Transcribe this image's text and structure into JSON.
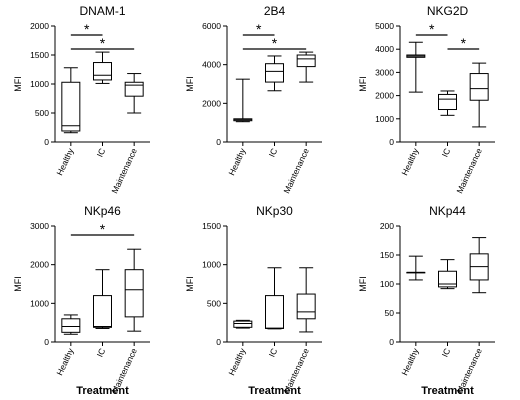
{
  "chart_data": [
    {
      "type": "box",
      "title": "DNAM-1",
      "ylabel": "MFI",
      "xlabel": "",
      "ylim": [
        0,
        2000
      ],
      "yticks": [
        "0",
        "500",
        "1000",
        "1500",
        "2000"
      ],
      "categories": [
        "Healthy",
        "IC",
        "Maintenance"
      ],
      "boxes": [
        {
          "min": 160,
          "q1": 190,
          "median": 280,
          "q3": 1030,
          "max": 1280
        },
        {
          "min": 1010,
          "q1": 1070,
          "median": 1150,
          "q3": 1370,
          "max": 1550
        },
        {
          "min": 500,
          "q1": 790,
          "median": 980,
          "q3": 1030,
          "max": 1180
        }
      ],
      "significance": [
        {
          "from": 0,
          "to": 1,
          "label": "*"
        },
        {
          "from": 0,
          "to": 2,
          "label": "*"
        }
      ]
    },
    {
      "type": "box",
      "title": "2B4",
      "ylabel": "MFI",
      "xlabel": "",
      "ylim": [
        0,
        6000
      ],
      "yticks": [
        "0",
        "2000",
        "4000",
        "6000"
      ],
      "categories": [
        "Healthy",
        "IC",
        "Maintenance"
      ],
      "boxes": [
        {
          "min": 1050,
          "q1": 1100,
          "median": 1150,
          "q3": 1200,
          "max": 3250
        },
        {
          "min": 2650,
          "q1": 3100,
          "median": 3650,
          "q3": 4050,
          "max": 4450
        },
        {
          "min": 3100,
          "q1": 3900,
          "median": 4300,
          "q3": 4500,
          "max": 4650
        }
      ],
      "significance": [
        {
          "from": 0,
          "to": 1,
          "label": "*"
        },
        {
          "from": 0,
          "to": 2,
          "label": "*"
        }
      ]
    },
    {
      "type": "box",
      "title": "NKG2D",
      "ylabel": "MFI",
      "xlabel": "",
      "ylim": [
        0,
        5000
      ],
      "yticks": [
        "0",
        "1000",
        "2000",
        "3000",
        "4000",
        "5000"
      ],
      "categories": [
        "Healthy",
        "IC",
        "Maintenance"
      ],
      "boxes": [
        {
          "min": 2150,
          "q1": 3650,
          "median": 3700,
          "q3": 3750,
          "max": 4300
        },
        {
          "min": 1150,
          "q1": 1400,
          "median": 1850,
          "q3": 2050,
          "max": 2200
        },
        {
          "min": 650,
          "q1": 1800,
          "median": 2300,
          "q3": 2950,
          "max": 3400
        }
      ],
      "significance": [
        {
          "from": 0,
          "to": 1,
          "label": "*"
        },
        {
          "from": 1,
          "to": 2,
          "label": "*"
        }
      ]
    },
    {
      "type": "box",
      "title": "NKp46",
      "ylabel": "MFI",
      "xlabel": "Treatment",
      "ylim": [
        0,
        3000
      ],
      "yticks": [
        "0",
        "1000",
        "2000",
        "3000"
      ],
      "categories": [
        "Healthy",
        "IC",
        "Maintenance"
      ],
      "boxes": [
        {
          "min": 200,
          "q1": 250,
          "median": 400,
          "q3": 600,
          "max": 700
        },
        {
          "min": 350,
          "q1": 380,
          "median": 400,
          "q3": 1200,
          "max": 1870
        },
        {
          "min": 280,
          "q1": 650,
          "median": 1350,
          "q3": 1870,
          "max": 2400
        }
      ],
      "significance": [
        {
          "from": 0,
          "to": 2,
          "label": "*"
        }
      ]
    },
    {
      "type": "box",
      "title": "NKp30",
      "ylabel": "MFI",
      "xlabel": "Treatment",
      "ylim": [
        0,
        1500
      ],
      "yticks": [
        "0",
        "500",
        "1000",
        "1500"
      ],
      "categories": [
        "Healthy",
        "IC",
        "Maintenance"
      ],
      "boxes": [
        {
          "min": 180,
          "q1": 190,
          "median": 240,
          "q3": 270,
          "max": 280
        },
        {
          "min": 170,
          "q1": 175,
          "median": 180,
          "q3": 600,
          "max": 960
        },
        {
          "min": 130,
          "q1": 300,
          "median": 390,
          "q3": 620,
          "max": 960
        }
      ],
      "significance": []
    },
    {
      "type": "box",
      "title": "NKp44",
      "ylabel": "MFI",
      "xlabel": "Treatment",
      "ylim": [
        0,
        200
      ],
      "yticks": [
        "0",
        "50",
        "100",
        "150",
        "200"
      ],
      "categories": [
        "Healthy",
        "IC",
        "Maintenance"
      ],
      "boxes": [
        {
          "min": 107,
          "q1": 120,
          "median": 120,
          "q3": 120,
          "max": 148
        },
        {
          "min": 92,
          "q1": 95,
          "median": 100,
          "q3": 122,
          "max": 142
        },
        {
          "min": 85,
          "q1": 107,
          "median": 130,
          "q3": 152,
          "max": 180
        }
      ],
      "significance": []
    }
  ]
}
